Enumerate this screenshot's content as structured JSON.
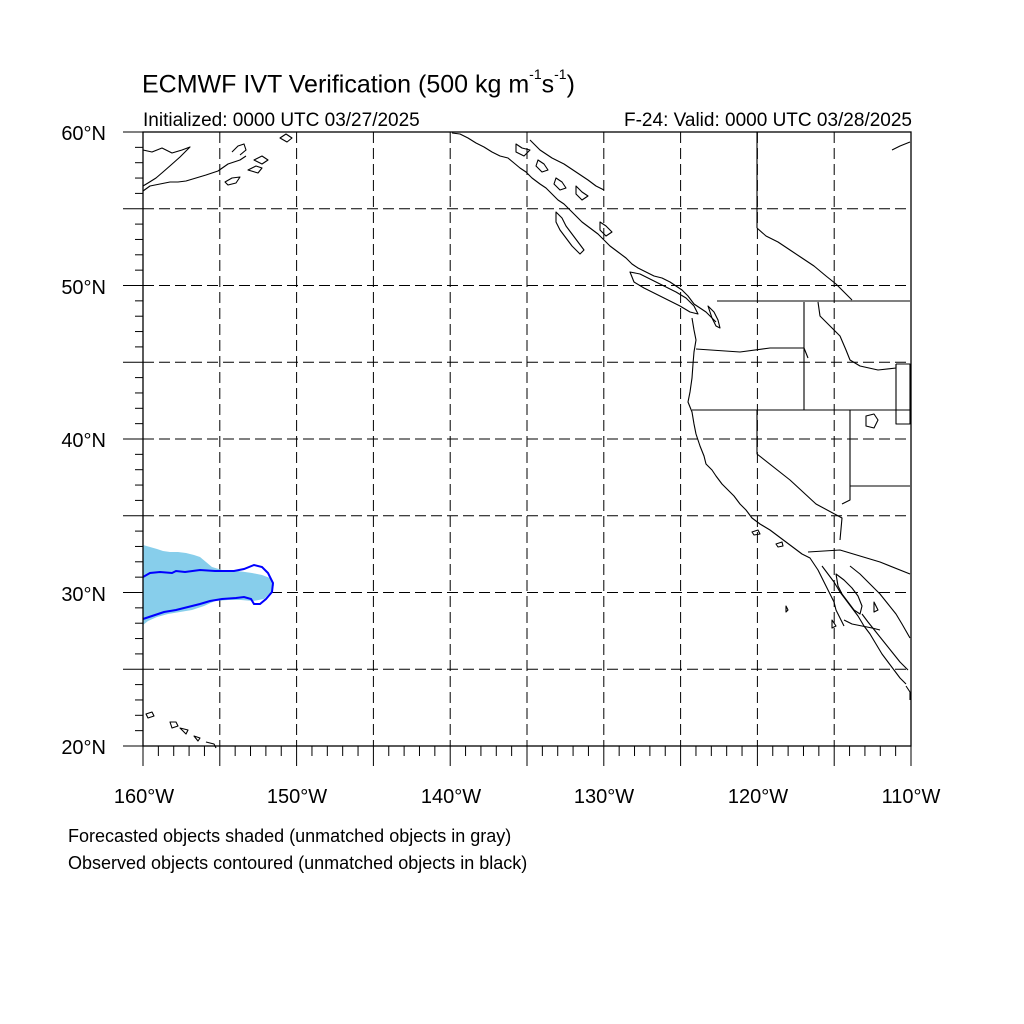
{
  "title": {
    "prefix": "ECMWF IVT Verification (500 kg m",
    "exp1": "-1",
    "mid": "s",
    "exp2": "-1",
    "suffix": ")"
  },
  "initialized": "Initialized: 0000 UTC 03/27/2025",
  "valid": "F-24: Valid: 0000 UTC 03/28/2025",
  "lat_labels": [
    "60°N",
    "50°N",
    "40°N",
    "30°N",
    "20°N"
  ],
  "lon_labels": [
    "160°W",
    "150°W",
    "140°W",
    "130°W",
    "120°W",
    "110°W"
  ],
  "notes": [
    "Forecasted objects shaded (unmatched objects in gray)",
    "Observed objects contoured (unmatched objects in black)"
  ],
  "colors": {
    "forecast_fill": "#87ceeb",
    "observed_contour": "#0000ff",
    "coastline": "#000000",
    "grid": "#000000"
  },
  "map_extent": {
    "lon": [
      -160,
      -110
    ],
    "lat": [
      20,
      60
    ]
  },
  "gridlines": {
    "style": "dashed",
    "lon_step": 5,
    "lat_step": 5
  }
}
